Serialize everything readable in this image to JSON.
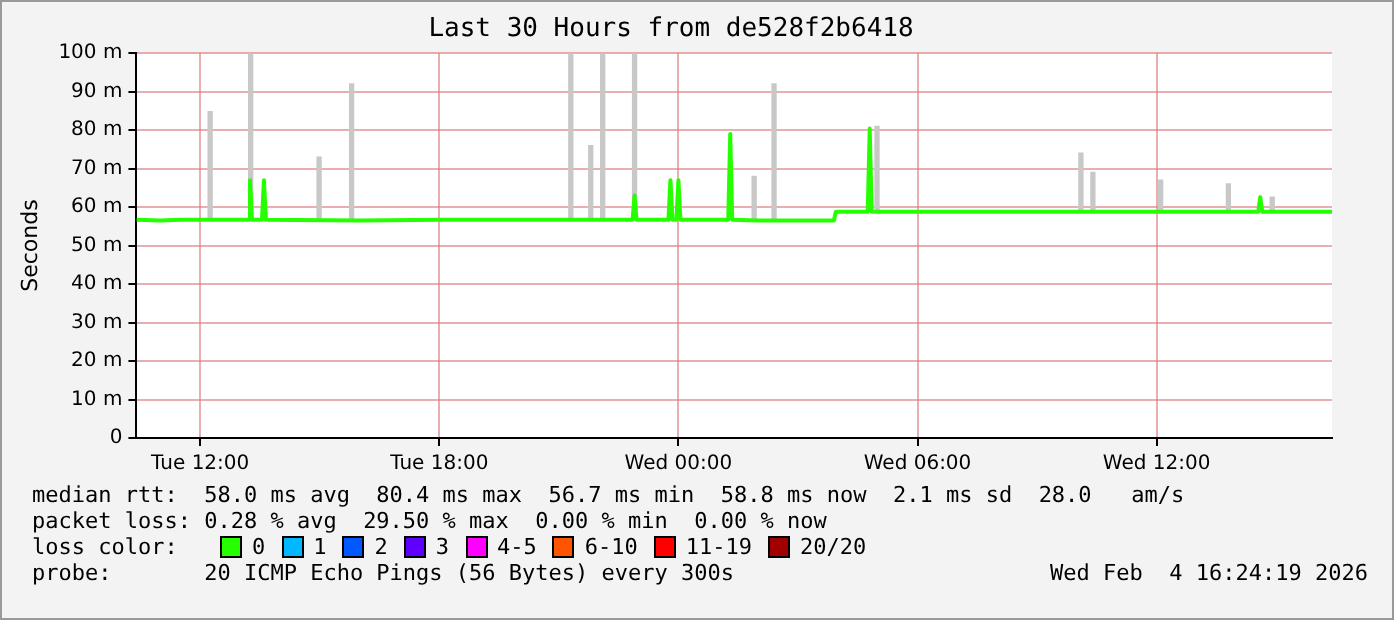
{
  "chart_data": {
    "type": "line",
    "title": "Last 30 Hours from de528f2b6418",
    "ylabel": "Seconds",
    "xlim": [
      "2026-02-03T10:24",
      "2026-02-04T16:24"
    ],
    "xticks": [
      {
        "value": "2026-02-03T12:00",
        "label": "Tue 12:00"
      },
      {
        "value": "2026-02-03T18:00",
        "label": "Tue 18:00"
      },
      {
        "value": "2026-02-04T00:00",
        "label": "Wed 00:00"
      },
      {
        "value": "2026-02-04T06:00",
        "label": "Wed 06:00"
      },
      {
        "value": "2026-02-04T12:00",
        "label": "Wed 12:00"
      }
    ],
    "ylim": [
      0,
      100
    ],
    "yticks": [
      0,
      {
        "value": 10,
        "label": "10 m"
      },
      {
        "value": 20,
        "label": "20 m"
      },
      {
        "value": 30,
        "label": "30 m"
      },
      {
        "value": 40,
        "label": "40 m"
      },
      {
        "value": 50,
        "label": "50 m"
      },
      {
        "value": 60,
        "label": "60 m"
      },
      {
        "value": 70,
        "label": "70 m"
      },
      {
        "value": 80,
        "label": "80 m"
      },
      {
        "value": 90,
        "label": "90 m"
      },
      {
        "value": 100,
        "label": "100 m"
      }
    ],
    "grid": true,
    "legend": "bottom",
    "legend_title": "loss color:",
    "series": [
      {
        "type": "bar",
        "color": "#c8c8c8",
        "x": [
          "2026-02-03T12:15",
          "2026-02-03T13:16",
          "2026-02-03T14:59",
          "2026-02-03T15:48",
          "2026-02-03T21:18",
          "2026-02-03T21:48",
          "2026-02-03T22:06",
          "2026-02-03T22:54",
          "2026-02-04T01:54",
          "2026-02-04T02:24",
          "2026-02-04T04:59",
          "2026-02-04T10:06",
          "2026-02-04T10:24",
          "2026-02-04T12:06",
          "2026-02-04T13:48",
          "2026-02-04T14:54"
        ],
        "base": [
          56.7,
          56.7,
          56.7,
          56.7,
          56.7,
          56.7,
          56.7,
          56.7,
          56.7,
          56.7,
          58.8,
          58.8,
          58.8,
          58.8,
          58.8,
          58.8
        ],
        "values": [
          28.1,
          43.3,
          16.3,
          35.3,
          43.3,
          19.3,
          43.3,
          43.3,
          11.3,
          35.3,
          22.2,
          15.2,
          10.2,
          8.2,
          7.2,
          3.8
        ]
      },
      {
        "name": "0",
        "color": "#26ff00",
        "x": [
          "2026-02-03T10:24",
          "2026-02-03T11:00",
          "2026-02-03T11:30",
          "2026-02-03T12:30",
          "2026-02-03T13:12",
          "2026-02-03T13:15",
          "2026-02-03T13:18",
          "2026-02-03T13:33",
          "2026-02-03T13:36",
          "2026-02-03T13:39",
          "2026-02-03T16:00",
          "2026-02-03T18:00",
          "2026-02-03T20:00",
          "2026-02-03T22:51",
          "2026-02-03T22:54",
          "2026-02-03T22:57",
          "2026-02-03T23:45",
          "2026-02-03T23:48",
          "2026-02-03T23:51",
          "2026-02-03T23:57",
          "2026-02-04T00:00",
          "2026-02-04T00:03",
          "2026-02-04T01:15",
          "2026-02-04T01:18",
          "2026-02-04T01:21",
          "2026-02-04T02:00",
          "2026-02-04T03:54",
          "2026-02-04T03:57",
          "2026-02-04T04:45",
          "2026-02-04T04:48",
          "2026-02-04T04:51",
          "2026-02-04T14:33",
          "2026-02-04T14:36",
          "2026-02-04T14:39",
          "2026-02-04T16:24"
        ],
        "values": [
          56.7,
          56.5,
          56.7,
          56.7,
          56.7,
          67,
          56.7,
          56.7,
          67,
          56.7,
          56.5,
          56.7,
          56.7,
          56.7,
          63,
          56.7,
          56.7,
          67,
          56.7,
          56.7,
          67,
          56.7,
          56.7,
          79,
          56.7,
          56.5,
          56.5,
          58.8,
          58.8,
          80.4,
          58.8,
          58.8,
          62.6,
          58.8,
          58.8
        ]
      },
      {
        "name": "1",
        "color": "#00b8ff"
      },
      {
        "name": "2",
        "color": "#0059ff"
      },
      {
        "name": "3",
        "color": "#5e00ff"
      },
      {
        "name": "4-5",
        "color": "#ff00ff"
      },
      {
        "name": "6-10",
        "color": "#ff5500"
      },
      {
        "name": "11-19",
        "color": "#ff0000"
      },
      {
        "name": "20/20",
        "color": "#a10000"
      }
    ],
    "annotations": [
      "median rtt:  58.0 ms avg  80.4 ms max  56.7 ms min  58.8 ms now  2.1 ms sd  28.0   am/s",
      "packet loss: 0.28 % avg  29.50 % max  0.00 % min  0.00 % now",
      "probe:       20 ICMP Echo Pings (56 Bytes) every 300s",
      "Wed Feb  4 16:24:19 2026"
    ]
  }
}
